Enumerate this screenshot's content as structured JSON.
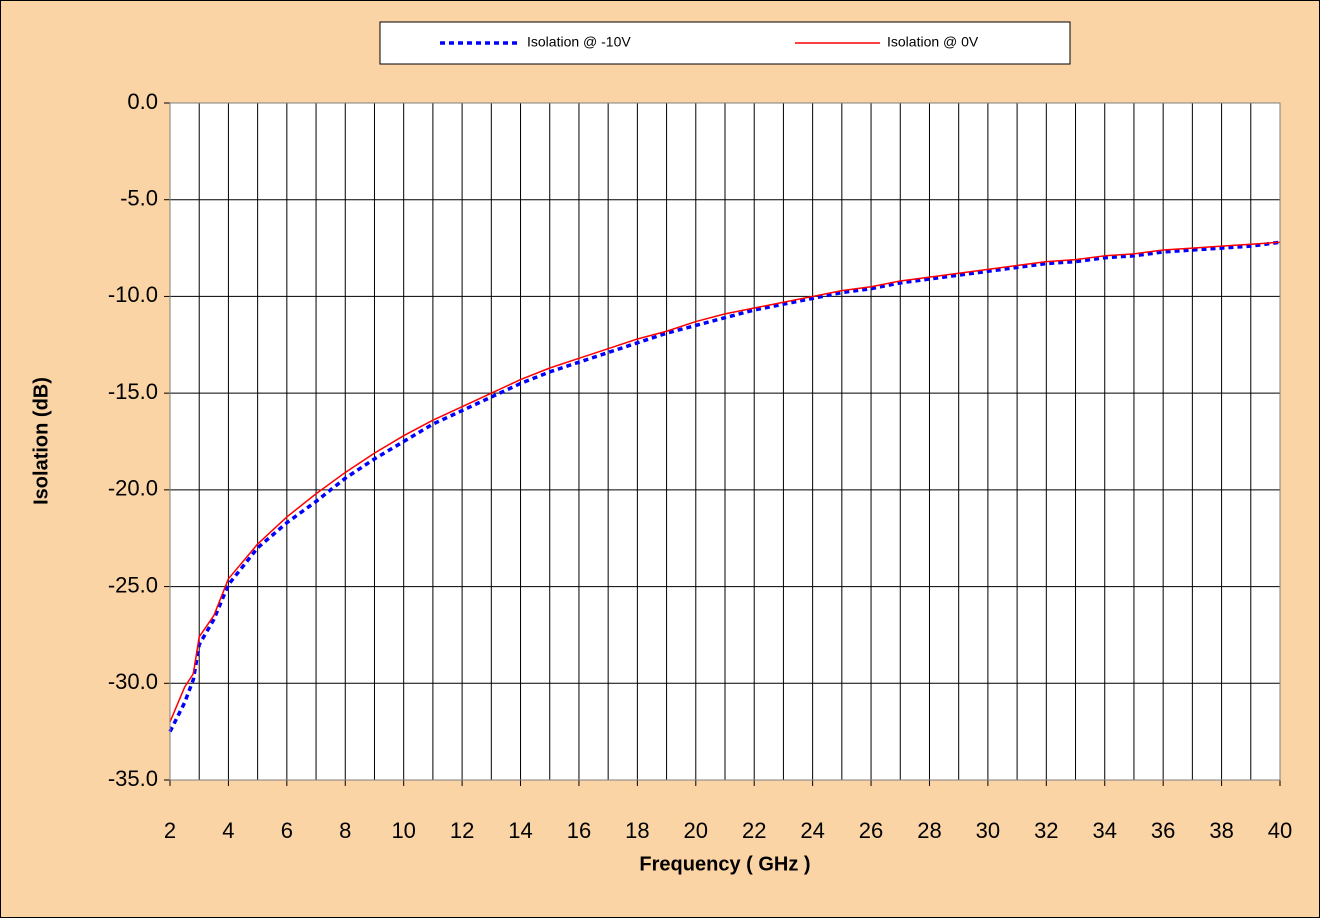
{
  "chart_data": {
    "type": "line",
    "xlabel": "Frequency ( GHz )",
    "ylabel": "Isolation (dB)",
    "x": [
      2,
      2.5,
      2.8,
      3,
      3.5,
      4,
      5,
      6,
      7,
      8,
      9,
      10,
      11,
      12,
      13,
      14,
      15,
      16,
      17,
      18,
      19,
      20,
      21,
      22,
      23,
      24,
      25,
      26,
      27,
      28,
      29,
      30,
      31,
      32,
      33,
      34,
      35,
      36,
      37,
      38,
      39,
      40
    ],
    "series": [
      {
        "name": "Isolation @ -10V",
        "color": "#0000ff",
        "style": "dotted",
        "values": [
          -32.5,
          -31.0,
          -29.8,
          -28.0,
          -26.7,
          -24.9,
          -23.0,
          -21.7,
          -20.6,
          -19.4,
          -18.4,
          -17.5,
          -16.6,
          -15.9,
          -15.2,
          -14.5,
          -13.9,
          -13.4,
          -12.9,
          -12.4,
          -11.9,
          -11.5,
          -11.1,
          -10.7,
          -10.4,
          -10.1,
          -9.8,
          -9.6,
          -9.3,
          -9.1,
          -8.9,
          -8.7,
          -8.5,
          -8.3,
          -8.2,
          -8.0,
          -7.9,
          -7.7,
          -7.6,
          -7.5,
          -7.4,
          -7.2
        ]
      },
      {
        "name": "Isolation @ 0V",
        "color": "#ff0000",
        "style": "solid",
        "values": [
          -32.0,
          -30.2,
          -29.5,
          -27.6,
          -26.5,
          -24.6,
          -22.8,
          -21.4,
          -20.2,
          -19.1,
          -18.1,
          -17.2,
          -16.4,
          -15.7,
          -15.0,
          -14.3,
          -13.7,
          -13.2,
          -12.7,
          -12.2,
          -11.8,
          -11.3,
          -10.9,
          -10.6,
          -10.3,
          -10.0,
          -9.7,
          -9.5,
          -9.2,
          -9.0,
          -8.8,
          -8.6,
          -8.4,
          -8.2,
          -8.1,
          -7.9,
          -7.8,
          -7.6,
          -7.5,
          -7.4,
          -7.3,
          -7.2
        ]
      }
    ],
    "xlim": [
      2,
      40
    ],
    "xticks": [
      2,
      4,
      6,
      8,
      10,
      12,
      14,
      16,
      18,
      20,
      22,
      24,
      26,
      28,
      30,
      32,
      34,
      36,
      38,
      40
    ],
    "x_minor_grid": [
      3,
      5,
      7,
      9,
      11,
      13,
      15,
      17,
      19,
      21,
      23,
      25,
      27,
      29,
      31,
      33,
      35,
      37,
      39
    ],
    "ylim": [
      -35,
      0
    ],
    "yticks": [
      {
        "value": -35,
        "label": "-35.0"
      },
      {
        "value": -30,
        "label": "-30.0"
      },
      {
        "value": -25,
        "label": "-25.0"
      },
      {
        "value": -20,
        "label": "-20.0"
      },
      {
        "value": -15,
        "label": "-15.0"
      },
      {
        "value": -10,
        "label": "-10.0"
      },
      {
        "value": -5,
        "label": "-5.0"
      },
      {
        "value": 0,
        "label": "0.0"
      }
    ],
    "grid": true,
    "legend": "top",
    "background": "#fbd4a6"
  }
}
